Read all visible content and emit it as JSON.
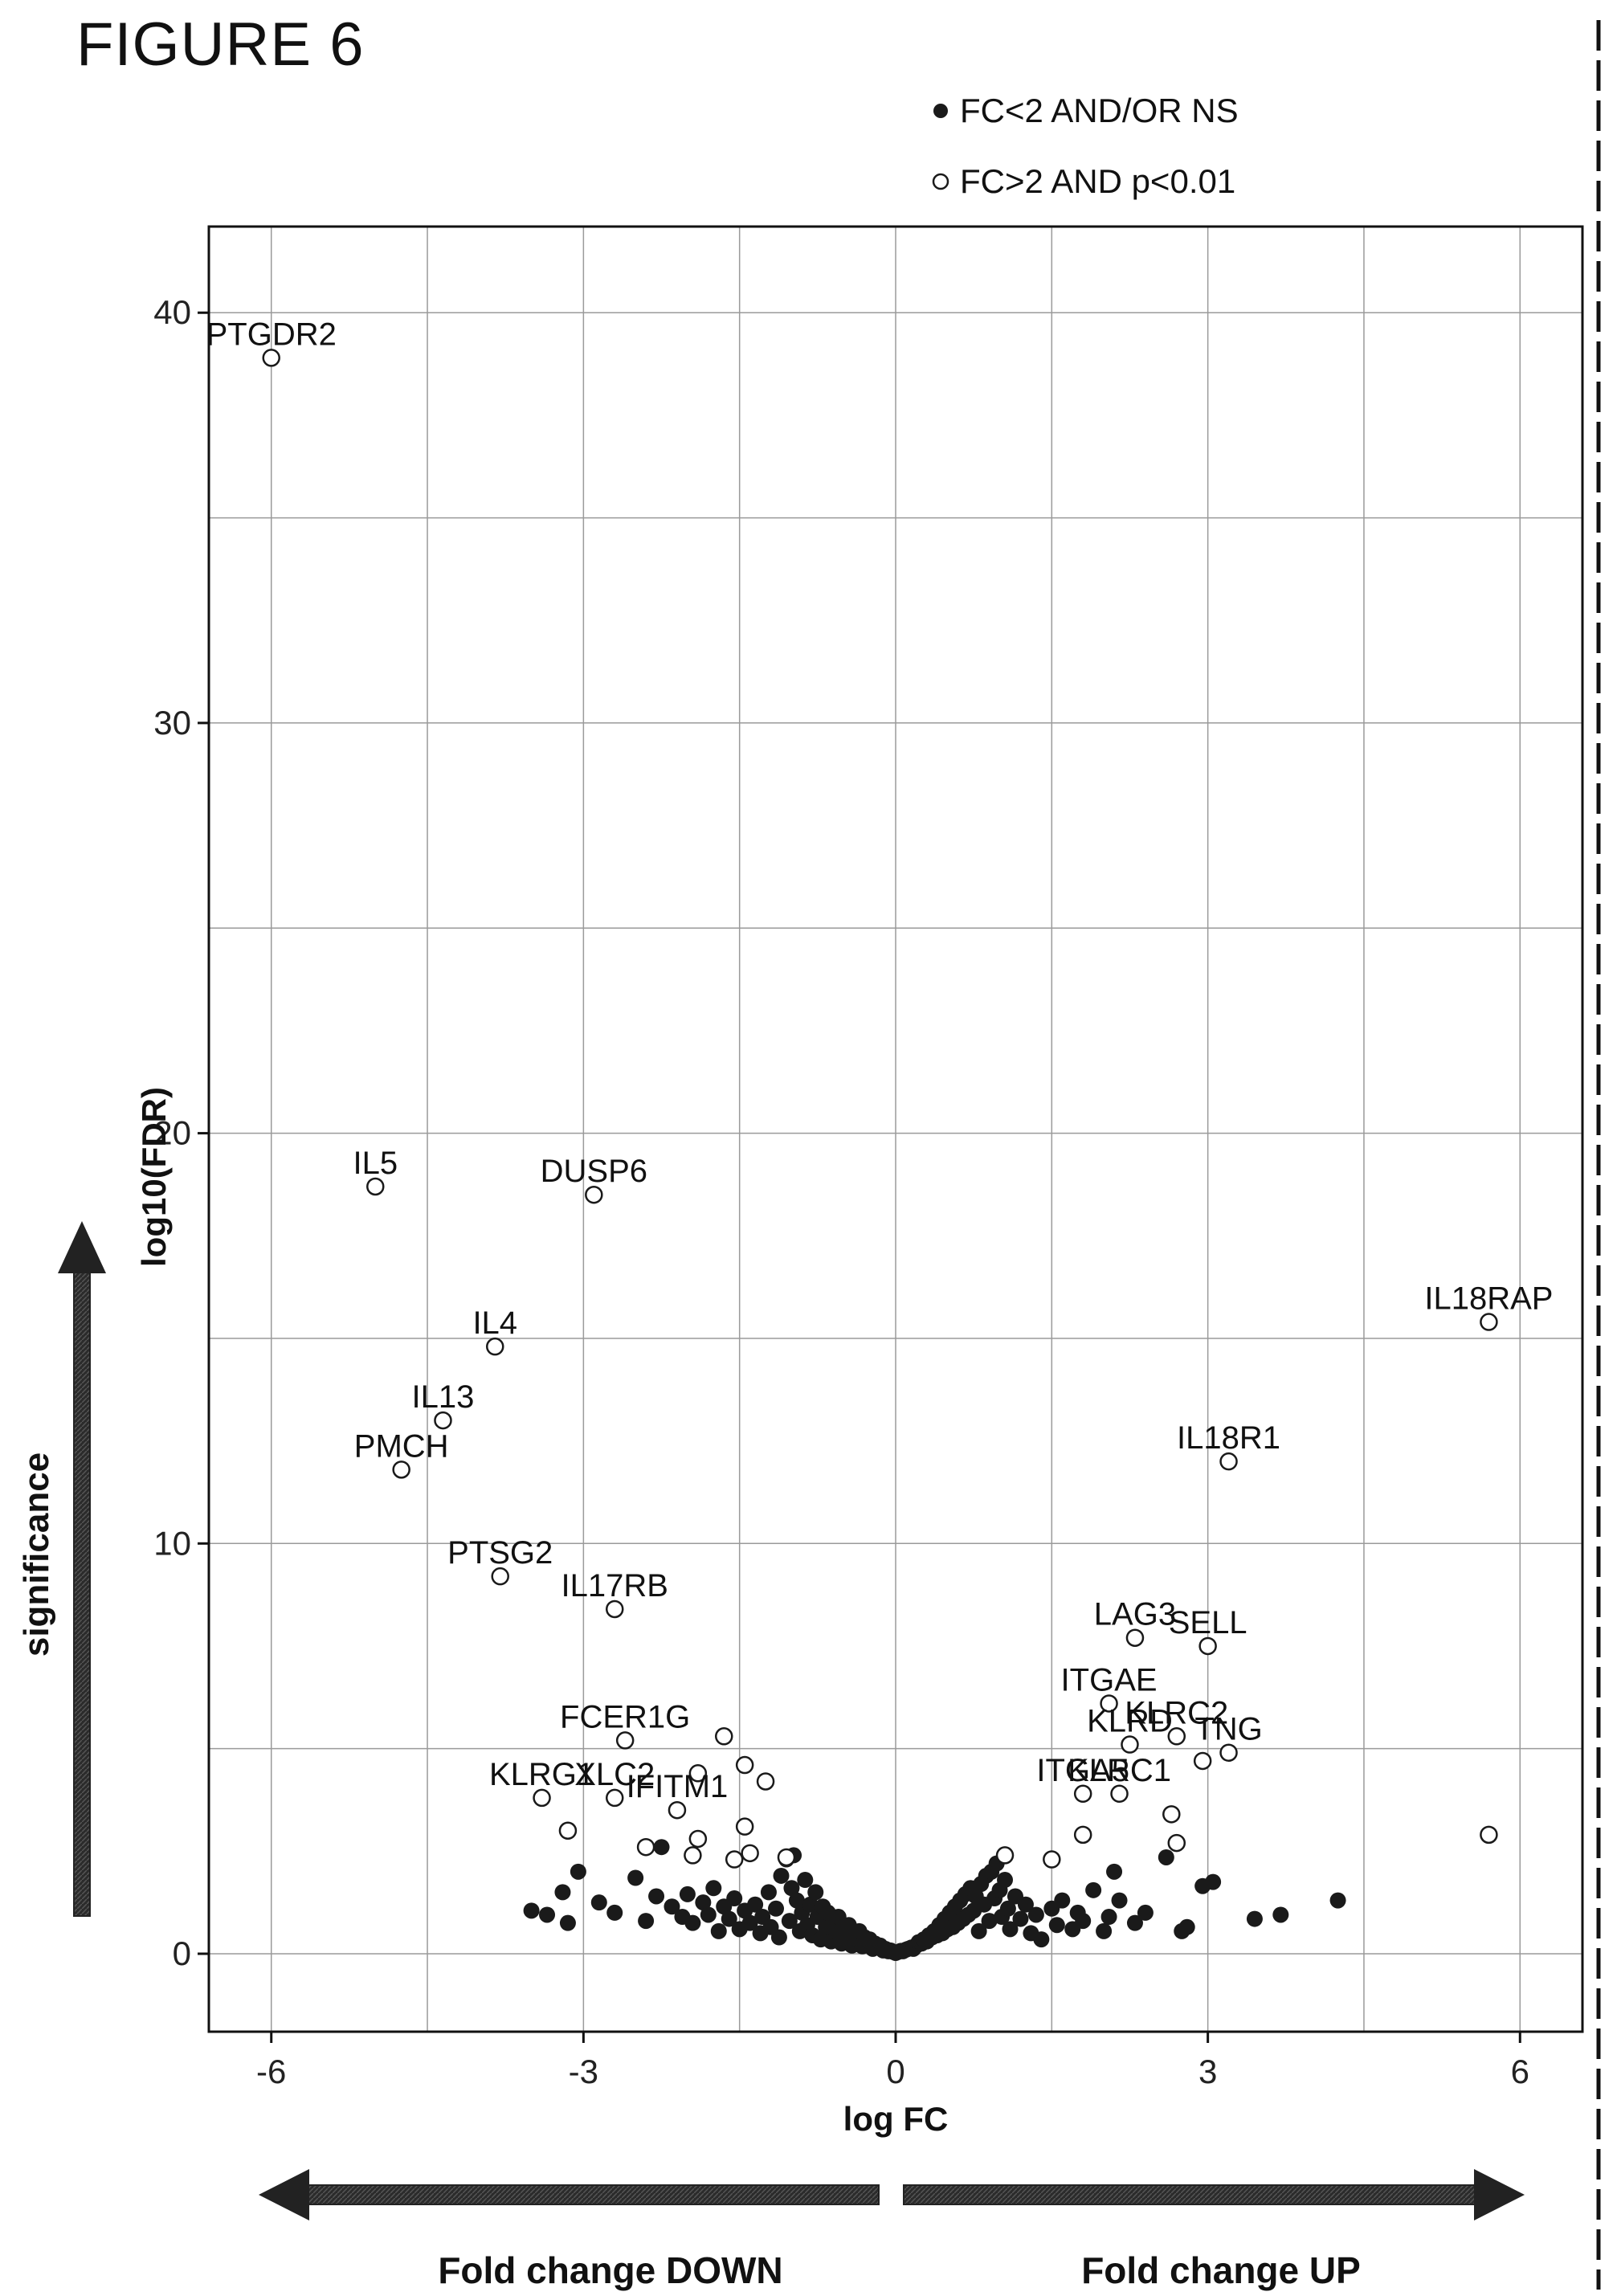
{
  "figure_title": "FIGURE 6",
  "chart_data": {
    "type": "scatter",
    "xlabel": "log FC",
    "ylabel": "log10(FDR)",
    "xlim": [
      -6.6,
      6.6
    ],
    "ylim": [
      -1.9,
      42.1
    ],
    "xticks": [
      -6,
      -3,
      0,
      3,
      6
    ],
    "xtick_labels": [
      "-6",
      "-3",
      "0",
      "3",
      "6"
    ],
    "yticks": [
      0,
      10,
      20,
      30,
      40
    ],
    "ytick_labels": [
      "0",
      "10",
      "20",
      "30",
      "40"
    ],
    "grid": true,
    "grid_x": [
      -6,
      -4.5,
      -3,
      -1.5,
      0,
      1.5,
      3,
      4.5,
      6
    ],
    "grid_y": [
      0,
      5,
      10,
      15,
      20,
      25,
      30,
      35,
      40
    ],
    "legend_position": "top-right",
    "series": [
      {
        "name": "FC<2 AND/OR NS",
        "marker": "filled",
        "color": "#1a1a1a",
        "points": [
          [
            -3.5,
            1.05
          ],
          [
            -3.35,
            0.95
          ],
          [
            -3.2,
            1.5
          ],
          [
            -3.15,
            0.75
          ],
          [
            -3.05,
            2.0
          ],
          [
            -2.85,
            1.25
          ],
          [
            -2.7,
            1.0
          ],
          [
            -2.5,
            1.85
          ],
          [
            -2.4,
            0.8
          ],
          [
            -2.3,
            1.4
          ],
          [
            -2.25,
            2.6
          ],
          [
            -2.15,
            1.15
          ],
          [
            -2.05,
            0.9
          ],
          [
            -2.0,
            1.45
          ],
          [
            -1.95,
            0.75
          ],
          [
            -1.85,
            1.25
          ],
          [
            -1.8,
            0.95
          ],
          [
            -1.75,
            1.6
          ],
          [
            -1.7,
            0.55
          ],
          [
            -1.65,
            1.15
          ],
          [
            -1.6,
            0.85
          ],
          [
            -1.55,
            1.35
          ],
          [
            -1.5,
            0.6
          ],
          [
            -1.45,
            1.05
          ],
          [
            -1.4,
            0.75
          ],
          [
            -1.35,
            1.2
          ],
          [
            -1.3,
            0.5
          ],
          [
            -1.28,
            0.9
          ],
          [
            -1.22,
            1.5
          ],
          [
            -1.2,
            0.65
          ],
          [
            -1.15,
            1.1
          ],
          [
            -1.12,
            0.4
          ],
          [
            -1.1,
            1.9
          ],
          [
            -1.05,
            2.3
          ],
          [
            -1.02,
            0.8
          ],
          [
            -1.0,
            1.6
          ],
          [
            -0.98,
            2.4
          ],
          [
            -0.95,
            1.3
          ],
          [
            -0.92,
            0.55
          ],
          [
            -0.9,
            1.0
          ],
          [
            -0.87,
            1.8
          ],
          [
            -0.85,
            0.7
          ],
          [
            -0.82,
            1.2
          ],
          [
            -0.8,
            0.45
          ],
          [
            -0.77,
            1.5
          ],
          [
            -0.75,
            0.9
          ],
          [
            -0.72,
            0.35
          ],
          [
            -0.7,
            1.15
          ],
          [
            -0.67,
            0.65
          ],
          [
            -0.65,
            1.0
          ],
          [
            -0.62,
            0.3
          ],
          [
            -0.6,
            0.8
          ],
          [
            -0.57,
            0.55
          ],
          [
            -0.55,
            0.9
          ],
          [
            -0.52,
            0.25
          ],
          [
            -0.5,
            0.65
          ],
          [
            -0.47,
            0.45
          ],
          [
            -0.45,
            0.7
          ],
          [
            -0.42,
            0.2
          ],
          [
            -0.4,
            0.5
          ],
          [
            -0.37,
            0.35
          ],
          [
            -0.35,
            0.55
          ],
          [
            -0.32,
            0.18
          ],
          [
            -0.3,
            0.4
          ],
          [
            -0.27,
            0.25
          ],
          [
            -0.25,
            0.35
          ],
          [
            -0.22,
            0.12
          ],
          [
            -0.2,
            0.25
          ],
          [
            -0.17,
            0.15
          ],
          [
            -0.15,
            0.2
          ],
          [
            -0.12,
            0.08
          ],
          [
            -0.1,
            0.12
          ],
          [
            -0.07,
            0.06
          ],
          [
            -0.05,
            0.08
          ],
          [
            -0.02,
            0.04
          ],
          [
            0.0,
            0.02
          ],
          [
            0.02,
            0.04
          ],
          [
            0.05,
            0.07
          ],
          [
            0.07,
            0.06
          ],
          [
            0.1,
            0.1
          ],
          [
            0.12,
            0.12
          ],
          [
            0.15,
            0.15
          ],
          [
            0.17,
            0.12
          ],
          [
            0.2,
            0.2
          ],
          [
            0.22,
            0.28
          ],
          [
            0.25,
            0.25
          ],
          [
            0.27,
            0.35
          ],
          [
            0.3,
            0.3
          ],
          [
            0.32,
            0.45
          ],
          [
            0.35,
            0.4
          ],
          [
            0.37,
            0.55
          ],
          [
            0.4,
            0.45
          ],
          [
            0.42,
            0.7
          ],
          [
            0.45,
            0.5
          ],
          [
            0.47,
            0.85
          ],
          [
            0.5,
            0.6
          ],
          [
            0.52,
            1.0
          ],
          [
            0.55,
            0.65
          ],
          [
            0.57,
            1.15
          ],
          [
            0.6,
            0.75
          ],
          [
            0.62,
            1.3
          ],
          [
            0.65,
            0.85
          ],
          [
            0.67,
            1.45
          ],
          [
            0.7,
            0.95
          ],
          [
            0.72,
            1.6
          ],
          [
            0.75,
            1.05
          ],
          [
            0.77,
            1.4
          ],
          [
            0.8,
            0.55
          ],
          [
            0.82,
            1.7
          ],
          [
            0.85,
            1.2
          ],
          [
            0.87,
            1.9
          ],
          [
            0.9,
            0.8
          ],
          [
            0.92,
            2.0
          ],
          [
            0.95,
            1.35
          ],
          [
            0.97,
            2.2
          ],
          [
            1.0,
            1.55
          ],
          [
            1.02,
            0.9
          ],
          [
            1.05,
            1.8
          ],
          [
            1.08,
            1.1
          ],
          [
            1.1,
            0.6
          ],
          [
            1.15,
            1.4
          ],
          [
            1.2,
            0.85
          ],
          [
            1.25,
            1.2
          ],
          [
            1.3,
            0.5
          ],
          [
            1.35,
            0.95
          ],
          [
            1.4,
            0.35
          ],
          [
            1.5,
            1.1
          ],
          [
            1.55,
            0.7
          ],
          [
            1.6,
            1.3
          ],
          [
            1.7,
            0.6
          ],
          [
            1.75,
            1.0
          ],
          [
            1.8,
            0.8
          ],
          [
            1.9,
            1.55
          ],
          [
            2.0,
            0.55
          ],
          [
            2.05,
            0.9
          ],
          [
            2.1,
            2.0
          ],
          [
            2.15,
            1.3
          ],
          [
            2.3,
            0.75
          ],
          [
            2.4,
            1.0
          ],
          [
            2.6,
            2.35
          ],
          [
            2.75,
            0.55
          ],
          [
            2.8,
            0.65
          ],
          [
            2.95,
            1.65
          ],
          [
            3.05,
            1.75
          ],
          [
            3.45,
            0.85
          ],
          [
            3.7,
            0.95
          ],
          [
            4.25,
            1.3
          ]
        ]
      },
      {
        "name": "FC>2 AND p<0.01",
        "marker": "open",
        "color": "#1a1a1a",
        "points": [
          {
            "x": -6.0,
            "y": 38.9,
            "label": "PTGDR2"
          },
          {
            "x": -5.0,
            "y": 18.7,
            "label": "IL5"
          },
          {
            "x": -2.9,
            "y": 18.5,
            "label": "DUSP6"
          },
          {
            "x": -3.85,
            "y": 14.8,
            "label": "IL4"
          },
          {
            "x": -4.35,
            "y": 13.0,
            "label": "IL13"
          },
          {
            "x": -4.75,
            "y": 11.8,
            "label": "PMCH"
          },
          {
            "x": -3.8,
            "y": 9.2,
            "label": "PTSG2"
          },
          {
            "x": -2.7,
            "y": 8.4,
            "label": "IL17RB"
          },
          {
            "x": -2.6,
            "y": 5.2,
            "label": "FCER1G"
          },
          {
            "x": -2.7,
            "y": 3.8,
            "label": "XLC2"
          },
          {
            "x": -3.4,
            "y": 3.8,
            "label": "KLRG1"
          },
          {
            "x": -2.1,
            "y": 3.5,
            "label": "IFITM1"
          },
          {
            "x": -1.65,
            "y": 5.3
          },
          {
            "x": -1.45,
            "y": 4.6
          },
          {
            "x": -1.25,
            "y": 4.2
          },
          {
            "x": -1.9,
            "y": 4.4
          },
          {
            "x": -1.45,
            "y": 3.1
          },
          {
            "x": -1.9,
            "y": 2.8
          },
          {
            "x": -2.4,
            "y": 2.6
          },
          {
            "x": -1.95,
            "y": 2.4
          },
          {
            "x": -1.4,
            "y": 2.45
          },
          {
            "x": -1.55,
            "y": 2.3
          },
          {
            "x": -1.05,
            "y": 2.35
          },
          {
            "x": -3.15,
            "y": 3.0
          },
          {
            "x": 5.7,
            "y": 15.4,
            "label": "IL18RAP"
          },
          {
            "x": 3.2,
            "y": 12.0,
            "label": "IL18R1"
          },
          {
            "x": 2.3,
            "y": 7.7,
            "label": "LAG3"
          },
          {
            "x": 3.0,
            "y": 7.5,
            "label": "SELL"
          },
          {
            "x": 2.05,
            "y": 6.1,
            "label": "ITGAE"
          },
          {
            "x": 2.7,
            "y": 5.3,
            "label": "KLRC2"
          },
          {
            "x": 2.25,
            "y": 5.1,
            "label": "KLRD"
          },
          {
            "x": 3.2,
            "y": 4.9,
            "label": "TNG"
          },
          {
            "x": 1.8,
            "y": 3.9,
            "label": "ITGA5"
          },
          {
            "x": 2.15,
            "y": 3.9,
            "label": "KLRC1"
          },
          {
            "x": 2.95,
            "y": 4.7
          },
          {
            "x": 2.65,
            "y": 3.4
          },
          {
            "x": 2.7,
            "y": 2.7
          },
          {
            "x": 1.8,
            "y": 2.9
          },
          {
            "x": 1.5,
            "y": 2.3
          },
          {
            "x": 1.05,
            "y": 2.4
          },
          {
            "x": 5.7,
            "y": 2.9
          }
        ]
      }
    ],
    "annotations": {
      "significance": "significance",
      "fold_down": "Fold change DOWN",
      "fold_up": "Fold change UP"
    }
  }
}
